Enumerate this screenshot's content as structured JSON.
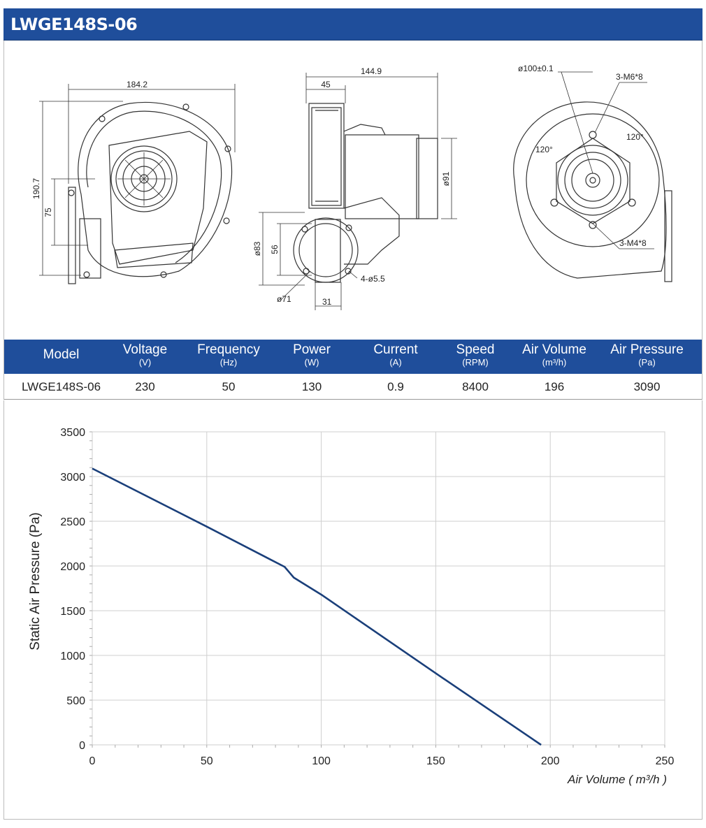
{
  "header": {
    "title": "LWGE148S-06"
  },
  "drawings": {
    "front": {
      "width_label": "184.2",
      "height_label": "190.7",
      "outlet_label": "75"
    },
    "side": {
      "total_label": "144.9",
      "depth_label": "45",
      "motor_dia": "ø91",
      "outlet_dia": "ø83",
      "outlet_h": "56",
      "flange_dia": "ø71",
      "offset": "31",
      "holes": "4-ø5.5"
    },
    "rear": {
      "bolt_circle": "ø100±0.1",
      "screw_top": "3-M6*8",
      "screw_bottom": "3-M4*8",
      "angle_a": "120°",
      "angle_b": "120°"
    }
  },
  "spec_table": {
    "headers": [
      {
        "name": "Model",
        "unit": ""
      },
      {
        "name": "Voltage",
        "unit": "(V)"
      },
      {
        "name": "Frequency",
        "unit": "(Hz)"
      },
      {
        "name": "Power",
        "unit": "(W)"
      },
      {
        "name": "Current",
        "unit": "(A)"
      },
      {
        "name": "Speed",
        "unit": "(RPM)"
      },
      {
        "name": "Air Volume",
        "unit": "(m³/h)"
      },
      {
        "name": "Air Pressure",
        "unit": "(Pa)"
      }
    ],
    "row": [
      "LWGE148S-06",
      "230",
      "50",
      "130",
      "0.9",
      "8400",
      "196",
      "3090"
    ]
  },
  "colors": {
    "brand_blue": "#1f4e9b",
    "curve": "#1a3f7a"
  },
  "chart_data": {
    "type": "line",
    "xlabel": "Air Volume ( m³/h )",
    "ylabel": "Static Air Pressure  (Pa)",
    "xlim": [
      0,
      250
    ],
    "ylim": [
      0,
      3500
    ],
    "xticks": [
      0,
      50,
      100,
      150,
      200,
      250
    ],
    "yticks": [
      0,
      500,
      1000,
      1500,
      2000,
      2500,
      3000,
      3500
    ],
    "grid": true,
    "series": [
      {
        "x": [
          0,
          50,
          84,
          86,
          88,
          100,
          150,
          196
        ],
        "y": [
          3090,
          2440,
          1990,
          1930,
          1870,
          1680,
          800,
          0
        ]
      }
    ]
  }
}
